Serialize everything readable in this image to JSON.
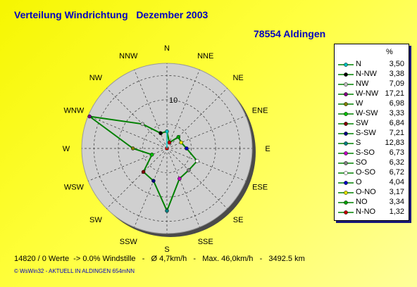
{
  "header": {
    "title": "Verteilung Windrichtung   Dezember 2003",
    "station": "78554 Aldingen"
  },
  "chart_data": {
    "type": "radar",
    "directions": [
      "N",
      "NNE",
      "NE",
      "ENE",
      "E",
      "ESE",
      "SE",
      "SSE",
      "S",
      "SSW",
      "SW",
      "WSW",
      "W",
      "WNW",
      "NW",
      "NNW"
    ],
    "values": [
      3.5,
      1.32,
      3.34,
      3.17,
      4.04,
      6.72,
      6.32,
      6.73,
      12.83,
      7.21,
      6.84,
      3.33,
      6.98,
      17.21,
      7.09,
      3.38
    ],
    "ring_label": "10",
    "rmax": 17.5,
    "grid": true,
    "series_color": "#008000",
    "legend_unit": "%",
    "legend": [
      {
        "label": "N",
        "value": "3,50",
        "color": "#00c0c0"
      },
      {
        "label": "N-NW",
        "value": "3,38",
        "color": "#000000"
      },
      {
        "label": "NW",
        "value": "7,09",
        "color": "#c0c0c0"
      },
      {
        "label": "W-NW",
        "value": "17,21",
        "color": "#800080"
      },
      {
        "label": "W",
        "value": "6,98",
        "color": "#808000"
      },
      {
        "label": "W-SW",
        "value": "3,33",
        "color": "#00c000"
      },
      {
        "label": "SW",
        "value": "6,84",
        "color": "#800000"
      },
      {
        "label": "S-SW",
        "value": "7,21",
        "color": "#000080"
      },
      {
        "label": "S",
        "value": "12,83",
        "color": "#008080"
      },
      {
        "label": "S-SO",
        "value": "6,73",
        "color": "#c000c0"
      },
      {
        "label": "SO",
        "value": "6,32",
        "color": "#808080"
      },
      {
        "label": "O-SO",
        "value": "6,72",
        "color": "#ffffff"
      },
      {
        "label": "O",
        "value": "4,04",
        "color": "#0000c0"
      },
      {
        "label": "O-NO",
        "value": "3,17",
        "color": "#e0e000"
      },
      {
        "label": "NO",
        "value": "3,34",
        "color": "#00a000"
      },
      {
        "label": "N-NO",
        "value": "1,32",
        "color": "#c00000"
      }
    ]
  },
  "footer": {
    "stats": "14820 / 0 Werte  -> 0.0% Windstille   -   Ø 4,7km/h   -   Max. 46,0km/h   -   3492.5 km",
    "credit": "© WsWin32  -  AKTUELL IN ALDINGEN 654mNN"
  }
}
